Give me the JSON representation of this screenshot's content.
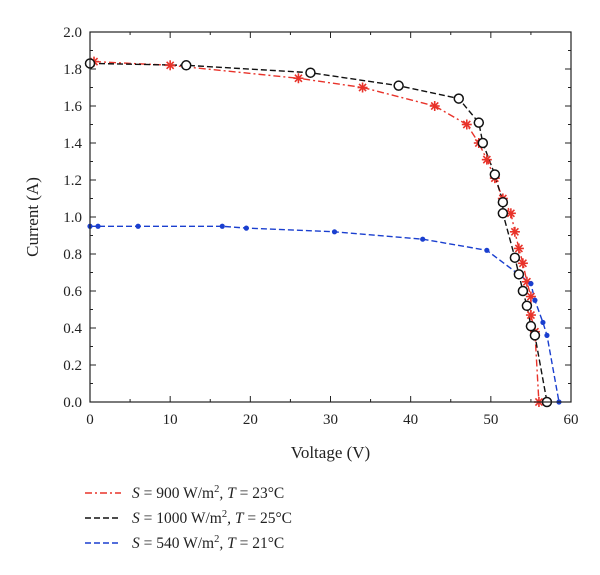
{
  "chart_data": {
    "type": "line",
    "xlabel": "Voltage (V)",
    "ylabel": "Current (A)",
    "xlim": [
      0,
      60
    ],
    "ylim": [
      0,
      2.0
    ],
    "x_ticks": [
      "0",
      "10",
      "20",
      "30",
      "40",
      "50",
      "60"
    ],
    "y_ticks": [
      "0.0",
      "0.2",
      "0.4",
      "0.6",
      "0.8",
      "1.0",
      "1.2",
      "1.4",
      "1.6",
      "1.8",
      "2.0"
    ],
    "grid": false,
    "legend_position": "bottom",
    "series": [
      {
        "legend": {
          "s_prefix": "S",
          "s_value": " = 900 W/m",
          "s_exp": "2",
          "t_prefix": ", T",
          "t_value": " = 23°C"
        },
        "color": "#e8332a",
        "line_style": "dash-dot",
        "marker": "asterisk",
        "points": [
          [
            0.5,
            1.84
          ],
          [
            10,
            1.82
          ],
          [
            26,
            1.75
          ],
          [
            34,
            1.7
          ],
          [
            43,
            1.6
          ],
          [
            47,
            1.5
          ],
          [
            48.5,
            1.4
          ],
          [
            49.5,
            1.31
          ],
          [
            50.5,
            1.21
          ],
          [
            51.5,
            1.1
          ],
          [
            52.5,
            1.02
          ],
          [
            53,
            0.92
          ],
          [
            53.5,
            0.83
          ],
          [
            54,
            0.75
          ],
          [
            54.5,
            0.65
          ],
          [
            55,
            0.57
          ],
          [
            55,
            0.47
          ],
          [
            55.5,
            0.38
          ],
          [
            56,
            0.0
          ]
        ]
      },
      {
        "legend": {
          "s_prefix": "S",
          "s_value": " = 1000 W/m",
          "s_exp": "2",
          "t_prefix": ", T",
          "t_value": " = 25°C"
        },
        "color": "#111111",
        "line_style": "dash",
        "marker": "open-circle",
        "points": [
          [
            0,
            1.83
          ],
          [
            12,
            1.82
          ],
          [
            27.5,
            1.78
          ],
          [
            38.5,
            1.71
          ],
          [
            46,
            1.64
          ],
          [
            48.5,
            1.51
          ],
          [
            49,
            1.4
          ],
          [
            50.5,
            1.23
          ],
          [
            51.5,
            1.08
          ],
          [
            51.5,
            1.02
          ],
          [
            53,
            0.78
          ],
          [
            53.5,
            0.69
          ],
          [
            54,
            0.6
          ],
          [
            54.5,
            0.52
          ],
          [
            55,
            0.41
          ],
          [
            55.5,
            0.36
          ],
          [
            57,
            0.0
          ]
        ]
      },
      {
        "legend": {
          "s_prefix": "S",
          "s_value": " = 540 W/m",
          "s_exp": "2",
          "t_prefix": ", T",
          "t_value": " = 21°C"
        },
        "color": "#1a3fcf",
        "line_style": "dash",
        "marker": "dot",
        "points": [
          [
            0,
            0.95
          ],
          [
            1,
            0.95
          ],
          [
            6,
            0.95
          ],
          [
            16.5,
            0.95
          ],
          [
            19.5,
            0.94
          ],
          [
            30.5,
            0.92
          ],
          [
            41.5,
            0.88
          ],
          [
            49.5,
            0.82
          ],
          [
            55,
            0.64
          ],
          [
            55.5,
            0.55
          ],
          [
            56.5,
            0.43
          ],
          [
            57,
            0.36
          ],
          [
            58.5,
            0.0
          ]
        ]
      }
    ]
  }
}
